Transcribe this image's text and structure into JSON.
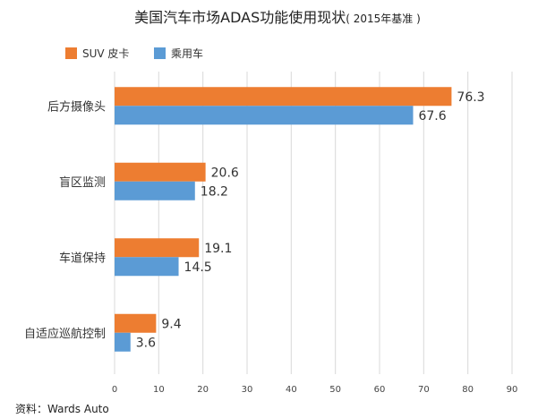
{
  "title": "美国汽车市场ADAS功能使用现状",
  "subtitle": "( 2015年基准 )",
  "source": "资料：Wards Auto",
  "colors": {
    "series1": "#ED7D31",
    "series2": "#5B9BD5",
    "grid": "#d9d9d9"
  },
  "chart_data": {
    "type": "bar",
    "orientation": "horizontal",
    "categories": [
      "后方摄像头",
      "盲区监测",
      "车道保持",
      "自适应巡航控制"
    ],
    "series": [
      {
        "name": "SUV 皮卡",
        "values": [
          76.3,
          20.6,
          19.1,
          9.4
        ]
      },
      {
        "name": "乘用车",
        "values": [
          67.6,
          18.2,
          14.5,
          3.6
        ]
      }
    ],
    "xlim": [
      0,
      90
    ],
    "xticks": [
      0,
      10,
      20,
      30,
      40,
      50,
      60,
      70,
      80,
      90
    ],
    "grid": true,
    "legend": "top-left"
  }
}
